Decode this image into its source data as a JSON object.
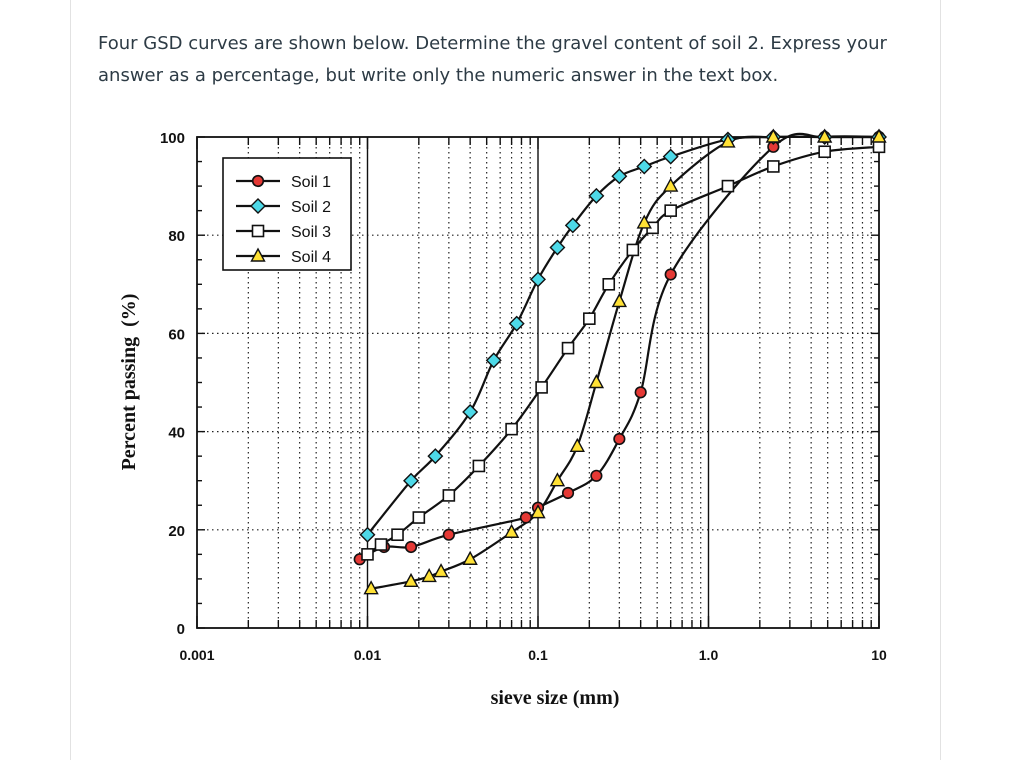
{
  "question": {
    "text": "Four GSD curves are shown below. Determine the gravel content of soil 2. Express your answer as a percentage, but write only the numeric answer in the text box."
  },
  "chart_data": {
    "type": "scatter",
    "title": "",
    "xlabel": "sieve size (mm)",
    "ylabel": "Percent passing  (%)",
    "x_scale": "log",
    "xlim": [
      0.001,
      10
    ],
    "ylim": [
      0,
      100
    ],
    "x_ticks": [
      {
        "value": 0.001,
        "label": "0.001"
      },
      {
        "value": 0.01,
        "label": "0.01"
      },
      {
        "value": 0.1,
        "label": "0.1"
      },
      {
        "value": 1,
        "label": "1.0"
      },
      {
        "value": 10,
        "label": "10"
      }
    ],
    "y_ticks": [
      {
        "value": 0,
        "label": "0"
      },
      {
        "value": 20,
        "label": "20"
      },
      {
        "value": 40,
        "label": "40"
      },
      {
        "value": 60,
        "label": "60"
      },
      {
        "value": 80,
        "label": "80"
      },
      {
        "value": 100,
        "label": "100"
      }
    ],
    "grid": "dotted",
    "legend": "top-left",
    "series": [
      {
        "name": "Soil 1",
        "marker": "circle",
        "color": "#e53935",
        "points": [
          [
            0.009,
            14
          ],
          [
            0.0125,
            16.5
          ],
          [
            0.018,
            16.5
          ],
          [
            0.03,
            19
          ],
          [
            0.085,
            22.5
          ],
          [
            0.1,
            24.5
          ],
          [
            0.15,
            27.5
          ],
          [
            0.22,
            31
          ],
          [
            0.3,
            38.5
          ],
          [
            0.4,
            48
          ],
          [
            0.6,
            72
          ],
          [
            2.4,
            98
          ],
          [
            4.8,
            100
          ],
          [
            10,
            100
          ]
        ]
      },
      {
        "name": "Soil 2",
        "marker": "diamond",
        "color": "#4dd9e8",
        "points": [
          [
            0.01,
            19
          ],
          [
            0.018,
            30
          ],
          [
            0.025,
            35
          ],
          [
            0.04,
            44
          ],
          [
            0.055,
            54.5
          ],
          [
            0.075,
            62
          ],
          [
            0.1,
            71
          ],
          [
            0.13,
            77.5
          ],
          [
            0.16,
            82
          ],
          [
            0.22,
            88
          ],
          [
            0.3,
            92
          ],
          [
            0.42,
            94
          ],
          [
            0.6,
            96
          ],
          [
            1.3,
            99.5
          ],
          [
            2.4,
            100
          ],
          [
            4.8,
            100
          ],
          [
            10,
            100
          ]
        ]
      },
      {
        "name": "Soil 3",
        "marker": "square",
        "color": "#ffffff",
        "points": [
          [
            0.01,
            15
          ],
          [
            0.012,
            17
          ],
          [
            0.015,
            19
          ],
          [
            0.02,
            22.5
          ],
          [
            0.03,
            27
          ],
          [
            0.045,
            33
          ],
          [
            0.07,
            40.5
          ],
          [
            0.105,
            49
          ],
          [
            0.15,
            57
          ],
          [
            0.2,
            63
          ],
          [
            0.26,
            70
          ],
          [
            0.36,
            77
          ],
          [
            0.47,
            81.5
          ],
          [
            0.6,
            85
          ],
          [
            1.3,
            90
          ],
          [
            2.4,
            94
          ],
          [
            4.8,
            97
          ],
          [
            10,
            98
          ]
        ]
      },
      {
        "name": "Soil 4",
        "marker": "triangle",
        "color": "#ffe135",
        "points": [
          [
            0.0105,
            8
          ],
          [
            0.018,
            9.5
          ],
          [
            0.023,
            10.5
          ],
          [
            0.027,
            11.5
          ],
          [
            0.04,
            14
          ],
          [
            0.07,
            19.5
          ],
          [
            0.1,
            23.5
          ],
          [
            0.13,
            30
          ],
          [
            0.17,
            37
          ],
          [
            0.22,
            50
          ],
          [
            0.3,
            66.5
          ],
          [
            0.42,
            82.5
          ],
          [
            0.6,
            90
          ],
          [
            1.3,
            99
          ],
          [
            2.4,
            100
          ],
          [
            4.8,
            100
          ],
          [
            10,
            100
          ]
        ]
      }
    ]
  }
}
